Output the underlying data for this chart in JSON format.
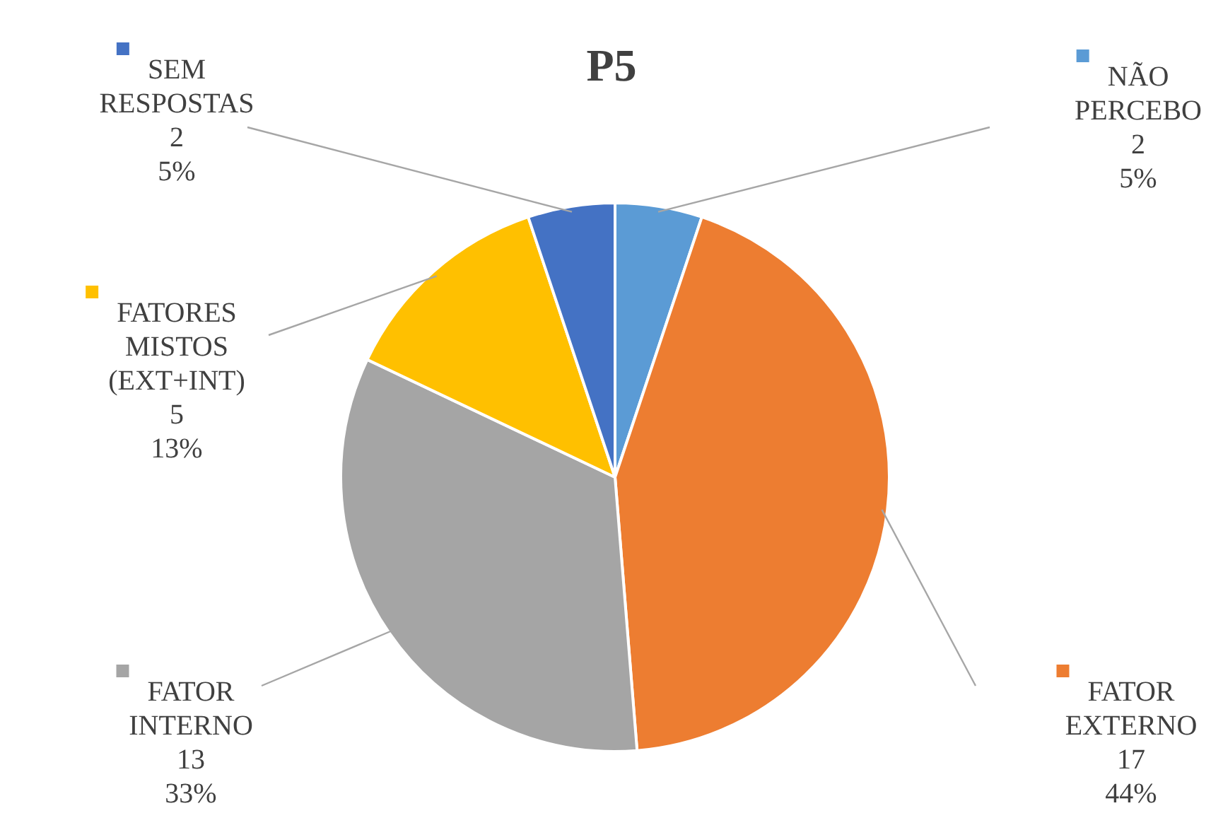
{
  "chart_data": {
    "type": "pie",
    "title": "P5",
    "categories": [
      "NÃO PERCEBO",
      "FATOR EXTERNO",
      "FATOR INTERNO",
      "FATORES MISTOS (EXT+INT)",
      "SEM RESPOSTAS"
    ],
    "values": [
      2,
      17,
      13,
      5,
      2
    ],
    "colors": [
      "#5b9bd5",
      "#ed7d31",
      "#a5a5a5",
      "#ffc000",
      "#4472c4"
    ],
    "value_labels": [
      "2\n5%",
      "17\n44%",
      "13\n33%",
      "5\n13%",
      "2\n5%"
    ],
    "legend": "top right"
  }
}
